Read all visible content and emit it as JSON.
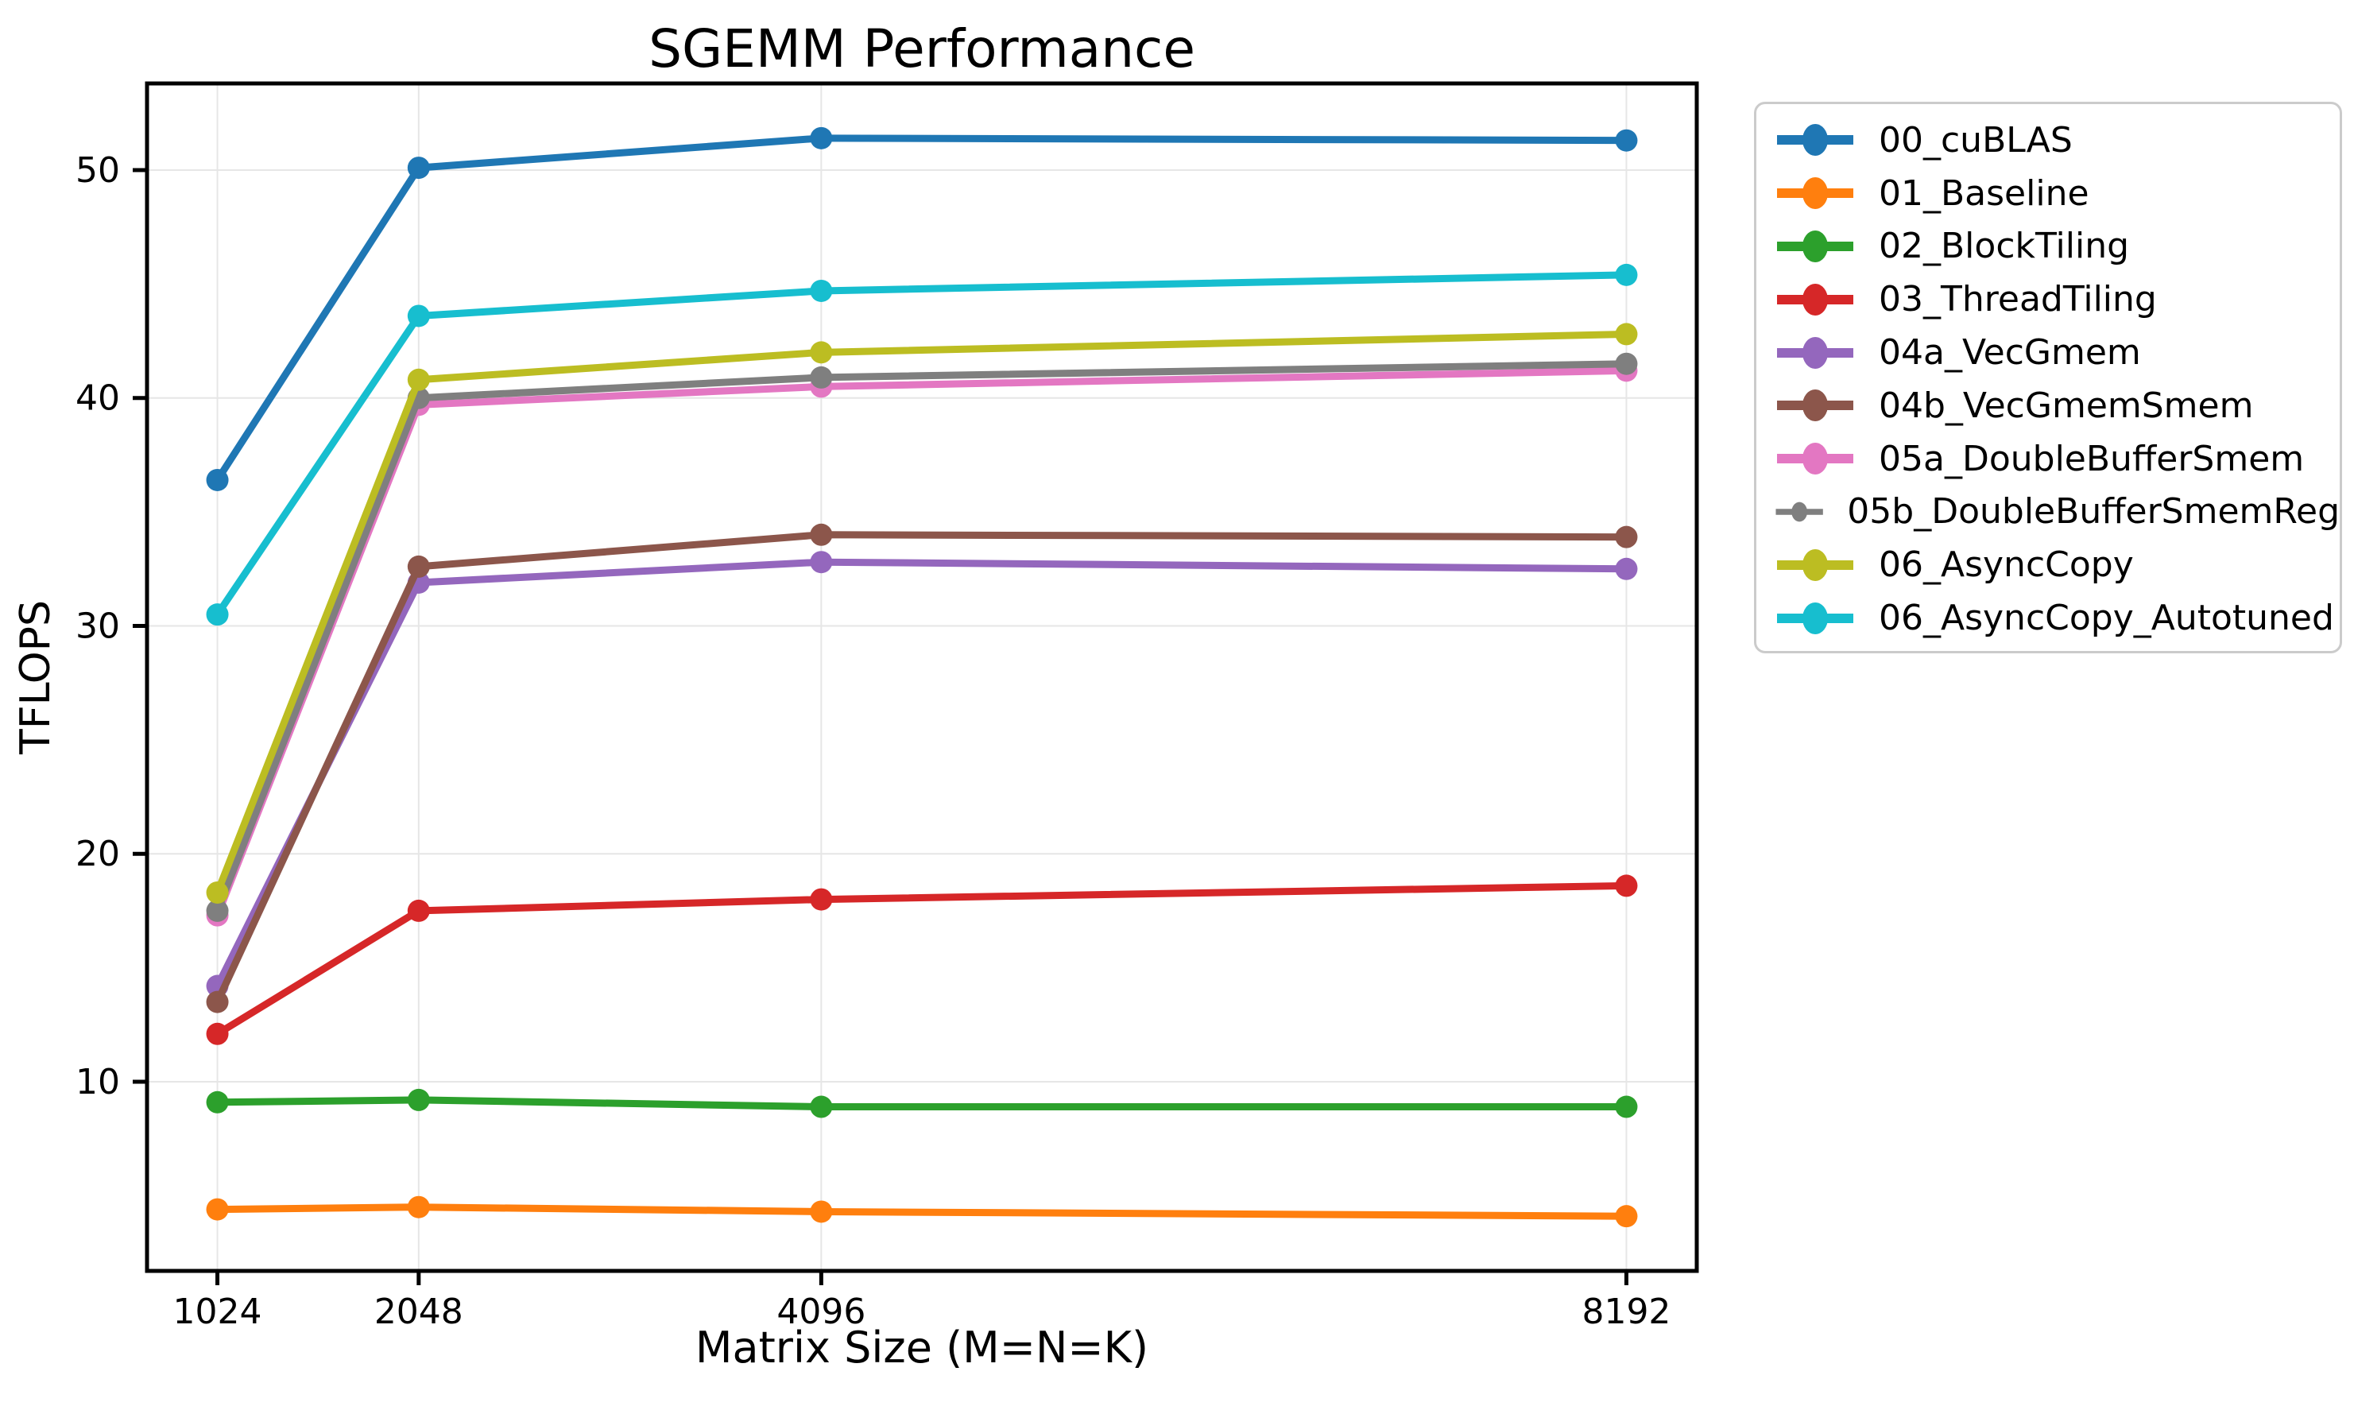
{
  "chart_data": {
    "type": "line",
    "title": "SGEMM Performance",
    "xlabel": "Matrix Size (M=N=K)",
    "ylabel": "TFLOPS",
    "x": [
      1024,
      2048,
      4096,
      8192
    ],
    "x_tick_labels": [
      "1024",
      "2048",
      "4096",
      "8192"
    ],
    "y_ticks": [
      10,
      20,
      30,
      40,
      50
    ],
    "xlim": [
      666,
      8550
    ],
    "ylim": [
      1.7,
      53.8
    ],
    "grid": true,
    "grid_color": "#e6e6e6",
    "legend_position": "outside-upper-right",
    "marker": "o",
    "series": [
      {
        "name": "00_cuBLAS",
        "color": "#1f77b4",
        "values": [
          36.4,
          50.1,
          51.4,
          51.3
        ]
      },
      {
        "name": "01_Baseline",
        "color": "#ff7f0e",
        "values": [
          4.4,
          4.5,
          4.3,
          4.1
        ]
      },
      {
        "name": "02_BlockTiling",
        "color": "#2ca02c",
        "values": [
          9.1,
          9.2,
          8.9,
          8.9
        ]
      },
      {
        "name": "03_ThreadTiling",
        "color": "#d62728",
        "values": [
          12.1,
          17.5,
          18.0,
          18.6
        ]
      },
      {
        "name": "04a_VecGmem",
        "color": "#9467bd",
        "values": [
          14.2,
          31.9,
          32.8,
          32.5
        ]
      },
      {
        "name": "04b_VecGmemSmem",
        "color": "#8c564b",
        "values": [
          13.5,
          32.6,
          34.0,
          33.9
        ]
      },
      {
        "name": "05a_DoubleBufferSmem",
        "color": "#e377c2",
        "values": [
          17.3,
          39.7,
          40.5,
          41.2
        ]
      },
      {
        "name": "05b_DoubleBufferSmemReg",
        "color": "#7f7f7f",
        "values": [
          17.5,
          40.0,
          40.9,
          41.5
        ]
      },
      {
        "name": "06_AsyncCopy",
        "color": "#bcbd22",
        "values": [
          18.3,
          40.8,
          42.0,
          42.8
        ]
      },
      {
        "name": "06_AsyncCopy_Autotuned",
        "color": "#17becf",
        "values": [
          30.5,
          43.6,
          44.7,
          45.4
        ]
      }
    ]
  }
}
